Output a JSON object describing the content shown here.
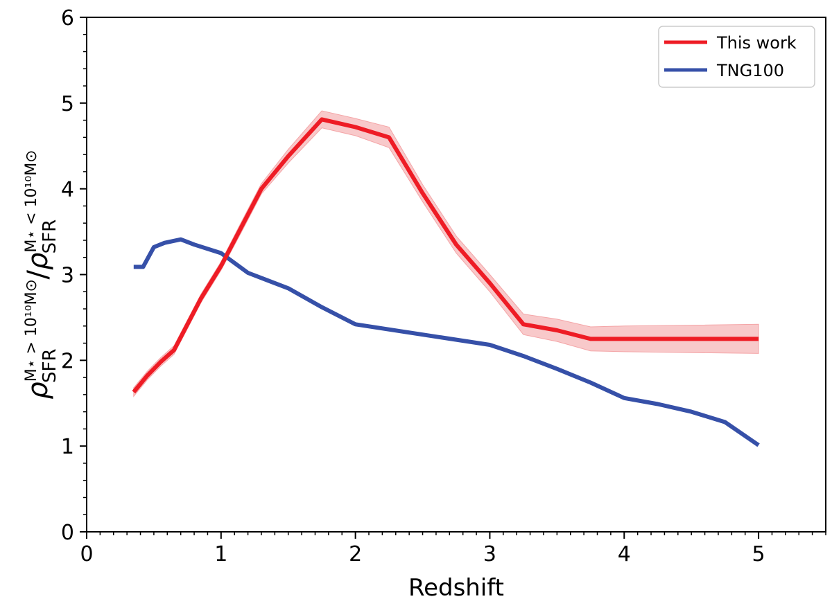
{
  "chart_data": {
    "type": "line",
    "title": "",
    "xlabel": "Redshift",
    "ylabel_main": "ρ",
    "ylabel_sub": "SFR",
    "ylabel_sup_num": "M⋆ > 10¹⁰M⊙",
    "ylabel_slash": "/",
    "ylabel_sup_den": "M⋆ < 10¹⁰M⊙",
    "xlim": [
      0,
      5.5
    ],
    "ylim": [
      0,
      6
    ],
    "xticks": [
      0,
      1,
      2,
      3,
      4,
      5
    ],
    "yticks": [
      0,
      1,
      2,
      3,
      4,
      5,
      6
    ],
    "x_tick_labels": [
      "0",
      "1",
      "2",
      "3",
      "4",
      "5"
    ],
    "y_tick_labels": [
      "0",
      "1",
      "2",
      "3",
      "4",
      "5",
      "6"
    ],
    "grid": false,
    "legend_position": "top-right",
    "series": [
      {
        "name": "This work",
        "color": "#ee1c25",
        "band_color": "#f4a5a7",
        "x": [
          0.35,
          0.45,
          0.55,
          0.65,
          0.75,
          0.85,
          1.0,
          1.15,
          1.3,
          1.5,
          1.75,
          2.0,
          2.25,
          2.5,
          2.75,
          3.0,
          3.25,
          3.5,
          3.75,
          4.0,
          4.5,
          5.0
        ],
        "y": [
          1.63,
          1.82,
          1.98,
          2.12,
          2.42,
          2.72,
          3.1,
          3.55,
          4.0,
          4.38,
          4.81,
          4.72,
          4.6,
          3.95,
          3.35,
          2.9,
          2.42,
          2.35,
          2.25,
          2.25,
          2.25,
          2.25
        ],
        "y_lower": [
          1.58,
          1.77,
          1.93,
          2.07,
          2.37,
          2.67,
          3.05,
          3.49,
          3.94,
          4.3,
          4.71,
          4.62,
          4.48,
          3.85,
          3.25,
          2.8,
          2.3,
          2.22,
          2.11,
          2.1,
          2.09,
          2.08
        ],
        "y_upper": [
          1.68,
          1.87,
          2.03,
          2.17,
          2.47,
          2.77,
          3.15,
          3.61,
          4.06,
          4.46,
          4.91,
          4.82,
          4.72,
          4.05,
          3.45,
          3.0,
          2.54,
          2.48,
          2.39,
          2.4,
          2.41,
          2.42
        ]
      },
      {
        "name": "TNG100",
        "color": "#3650a8",
        "x": [
          0.35,
          0.42,
          0.5,
          0.58,
          0.7,
          0.8,
          1.0,
          1.2,
          1.5,
          1.75,
          2.0,
          2.5,
          3.0,
          3.25,
          3.5,
          3.75,
          4.0,
          4.25,
          4.5,
          4.75,
          5.0
        ],
        "y": [
          3.09,
          3.09,
          3.32,
          3.37,
          3.41,
          3.35,
          3.25,
          3.02,
          2.84,
          2.62,
          2.42,
          2.3,
          2.18,
          2.05,
          1.9,
          1.74,
          1.56,
          1.49,
          1.4,
          1.28,
          1.01
        ]
      }
    ]
  }
}
